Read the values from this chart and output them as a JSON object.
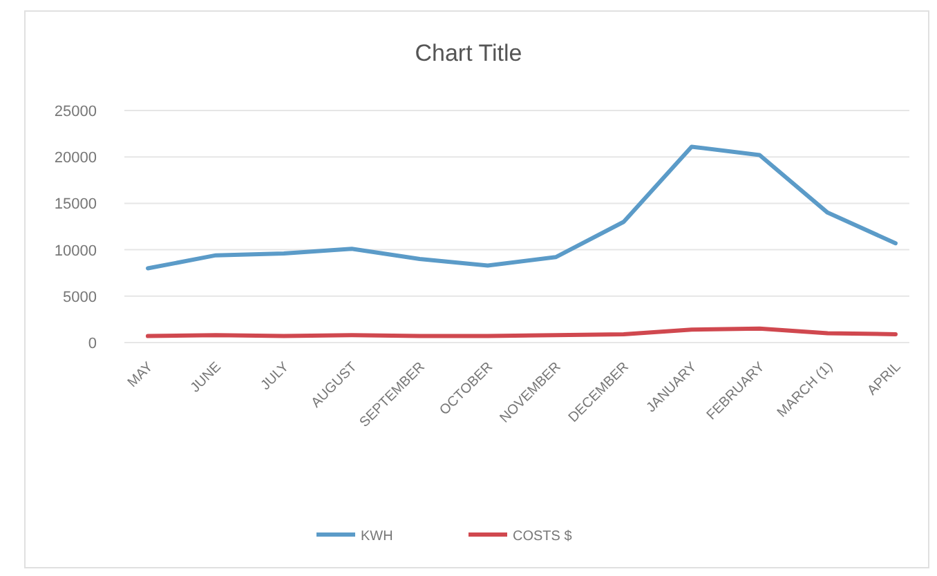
{
  "chart_data": {
    "type": "line",
    "title": "Chart Title",
    "categories": [
      "MAY",
      "JUNE",
      "JULY",
      "AUGUST",
      "SEPTEMBER",
      "OCTOBER",
      "NOVEMBER",
      "DECEMBER",
      "JANUARY",
      "FEBRUARY",
      "MARCH (1)",
      "APRIL"
    ],
    "series": [
      {
        "name": "KWH",
        "color": "#5b9bc8",
        "values": [
          8000,
          9400,
          9600,
          10100,
          9000,
          8300,
          9200,
          13000,
          21100,
          20200,
          14000,
          10700
        ]
      },
      {
        "name": "COSTS $",
        "color": "#d0484f",
        "values": [
          700,
          800,
          700,
          800,
          700,
          700,
          800,
          900,
          1400,
          1500,
          1000,
          900
        ]
      }
    ],
    "ylim": [
      0,
      25000
    ],
    "yticks": [
      0,
      5000,
      10000,
      15000,
      20000,
      25000
    ],
    "grid": "y",
    "legend": "bottom",
    "marker": "none",
    "line_style": "solid"
  }
}
